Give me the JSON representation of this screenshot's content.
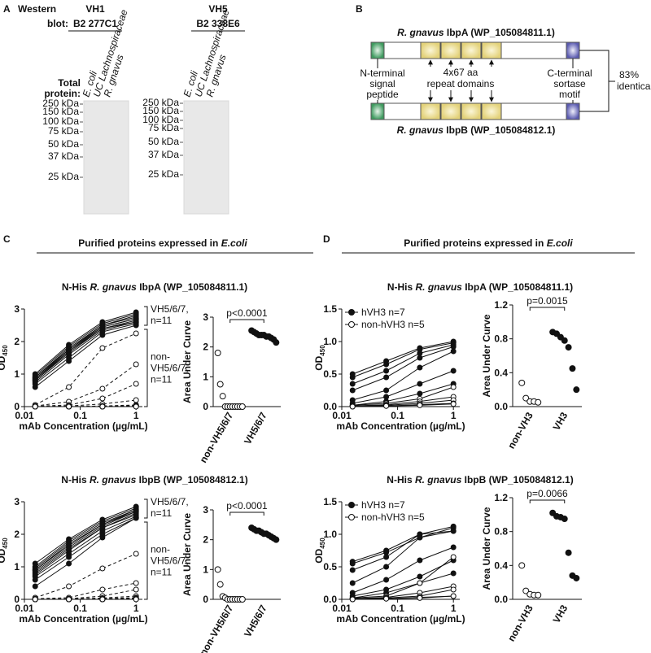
{
  "panel_a": {
    "letter": "A",
    "western": "Western",
    "blot": "blot:",
    "blots": [
      {
        "heavy": "VH1",
        "clone": "B2 277C1",
        "total": "Total",
        "protein": "protein:",
        "lanes": [
          "E. coli",
          "UC Lachnospiraceae",
          "R. gnavus"
        ],
        "markers": [
          "250 kDa",
          "150 kDa",
          "100 kDa",
          "75 kDa",
          "50 kDa",
          "37 kDa",
          "25 kDa"
        ]
      },
      {
        "heavy": "VH5",
        "clone": "B2 338E6",
        "lanes": [
          "E. coli",
          "UC Lachnospiraceae",
          "R. gnavus"
        ],
        "markers": [
          "250 kDa",
          "150 kDa",
          "100 kDa",
          "75 kDa",
          "50 kDa",
          "37 kDa",
          "25 kDa"
        ]
      }
    ]
  },
  "panel_b": {
    "letter": "B",
    "proteins": [
      [
        "R. gnavus",
        " IbpA (WP_105084811.1)"
      ],
      [
        "R. gnavus",
        " IbpB (WP_105084812.1)"
      ]
    ],
    "n_term": [
      "N-terminal",
      "signal",
      "peptide"
    ],
    "repeats": [
      "4x67 aa",
      "repeat domains"
    ],
    "c_term": [
      "C-terminal",
      "sortase",
      "motif"
    ],
    "identity": [
      "83%",
      "identical"
    ]
  },
  "panel_c": {
    "letter": "C",
    "header": [
      "Purified proteins expressed in ",
      "E.coli"
    ],
    "titles": [
      [
        "N-His ",
        "R. gnavus",
        " IbpA (WP_105084811.1)"
      ],
      [
        "N-His ",
        "R. gnavus",
        " IbpB (WP_105084812.1)"
      ]
    ]
  },
  "panel_d": {
    "letter": "D",
    "header": [
      "Purified proteins expressed in ",
      "E.coli"
    ],
    "titles": [
      [
        "N-His ",
        "R. gnavus",
        " IbpA (WP_105084811.1)"
      ],
      [
        "N-His ",
        "R. gnavus",
        " IbpB (WP_105084812.1)"
      ]
    ]
  },
  "chart_data": [
    {
      "type": "line",
      "ylabel": "OD",
      "ylabel_sub": "450",
      "xlabel": "mAb Concentration (µg/mL)",
      "log_x": true,
      "x": [
        0.0156,
        0.0625,
        0.25,
        1
      ],
      "xlim": [
        0.01,
        1.3
      ],
      "xticks": [
        0.01,
        0.1,
        1
      ],
      "ylim": [
        0,
        3
      ],
      "yticks": [
        0,
        1,
        2,
        3
      ],
      "annotations": [
        [
          "VH5/6/7,",
          "n=11"
        ],
        [
          "non-",
          "VH5/6/7,",
          "n=11"
        ]
      ],
      "series": [
        {
          "marker": "filled",
          "values": [
            1.0,
            1.9,
            2.6,
            2.9
          ]
        },
        {
          "marker": "filled",
          "values": [
            0.95,
            1.85,
            2.55,
            2.85
          ]
        },
        {
          "marker": "filled",
          "values": [
            0.9,
            1.8,
            2.5,
            2.8
          ]
        },
        {
          "marker": "filled",
          "values": [
            0.9,
            1.75,
            2.5,
            2.75
          ]
        },
        {
          "marker": "filled",
          "values": [
            0.85,
            1.75,
            2.45,
            2.7
          ]
        },
        {
          "marker": "filled",
          "values": [
            0.85,
            1.7,
            2.45,
            2.7
          ]
        },
        {
          "marker": "filled",
          "values": [
            0.8,
            1.7,
            2.4,
            2.65
          ]
        },
        {
          "marker": "filled",
          "values": [
            0.8,
            1.65,
            2.4,
            2.6
          ]
        },
        {
          "marker": "filled",
          "values": [
            0.75,
            1.6,
            2.35,
            2.6
          ]
        },
        {
          "marker": "filled",
          "values": [
            0.7,
            1.5,
            2.3,
            2.55
          ]
        },
        {
          "marker": "filled",
          "values": [
            0.6,
            1.4,
            2.2,
            2.5
          ]
        },
        {
          "marker": "open",
          "dashed": true,
          "values": [
            0.05,
            0.6,
            1.8,
            2.25
          ]
        },
        {
          "marker": "open",
          "dashed": true,
          "values": [
            0.02,
            0.15,
            0.55,
            1.3
          ]
        },
        {
          "marker": "open",
          "dashed": true,
          "values": [
            0.01,
            0.05,
            0.25,
            0.7
          ]
        },
        {
          "marker": "open",
          "dashed": true,
          "values": [
            0,
            0.02,
            0.08,
            0.2
          ]
        },
        {
          "marker": "open",
          "dashed": true,
          "values": [
            0,
            0,
            0.02,
            0.05
          ]
        },
        {
          "marker": "open",
          "dashed": true,
          "values": [
            0,
            0,
            0.01,
            0.03
          ]
        },
        {
          "marker": "open",
          "dashed": true,
          "values": [
            0,
            0,
            0,
            0.02
          ]
        },
        {
          "marker": "open",
          "dashed": true,
          "values": [
            0,
            0,
            0,
            0.02
          ]
        },
        {
          "marker": "open",
          "dashed": true,
          "values": [
            0,
            0,
            0,
            0.01
          ]
        },
        {
          "marker": "open",
          "dashed": true,
          "values": [
            0,
            0,
            0,
            0.01
          ]
        },
        {
          "marker": "open",
          "dashed": true,
          "values": [
            0,
            0,
            0,
            0
          ]
        }
      ]
    },
    {
      "type": "dot",
      "ylabel": "Area Under Curve",
      "categories": [
        "non-VH5/6/7",
        "VH5/6/7"
      ],
      "ylim": [
        0,
        3
      ],
      "yticks": [
        0,
        1,
        2,
        3
      ],
      "pvalue": "p<0.0001",
      "groups": [
        {
          "marker": "open",
          "values": [
            1.8,
            0.75,
            0.35,
            0,
            0,
            0,
            0,
            0,
            0,
            0,
            0
          ]
        },
        {
          "marker": "filled",
          "values": [
            2.55,
            2.5,
            2.45,
            2.4,
            2.4,
            2.4,
            2.35,
            2.35,
            2.3,
            2.25,
            2.15
          ]
        }
      ]
    },
    {
      "type": "line",
      "ylabel": "OD",
      "ylabel_sub": "450",
      "xlabel": "mAb Concentration (µg/mL)",
      "log_x": true,
      "x": [
        0.0156,
        0.0625,
        0.25,
        1
      ],
      "xlim": [
        0.01,
        1.3
      ],
      "xticks": [
        0.01,
        0.1,
        1
      ],
      "ylim": [
        0,
        3
      ],
      "yticks": [
        0,
        1,
        2,
        3
      ],
      "annotations": [
        [
          "VH5/6/7,",
          "n=11"
        ],
        [
          "non-",
          "VH5/6/7,",
          "n=11"
        ]
      ],
      "series": [
        {
          "marker": "filled",
          "values": [
            1.1,
            1.85,
            2.45,
            2.85
          ]
        },
        {
          "marker": "filled",
          "values": [
            1.0,
            1.8,
            2.4,
            2.8
          ]
        },
        {
          "marker": "filled",
          "values": [
            0.95,
            1.75,
            2.35,
            2.75
          ]
        },
        {
          "marker": "filled",
          "values": [
            0.9,
            1.7,
            2.3,
            2.75
          ]
        },
        {
          "marker": "filled",
          "values": [
            0.9,
            1.65,
            2.3,
            2.7
          ]
        },
        {
          "marker": "filled",
          "values": [
            0.85,
            1.6,
            2.25,
            2.7
          ]
        },
        {
          "marker": "filled",
          "values": [
            0.8,
            1.55,
            2.2,
            2.65
          ]
        },
        {
          "marker": "filled",
          "values": [
            0.75,
            1.5,
            2.2,
            2.6
          ]
        },
        {
          "marker": "filled",
          "values": [
            0.7,
            1.4,
            2.1,
            2.55
          ]
        },
        {
          "marker": "filled",
          "values": [
            0.6,
            1.3,
            2.0,
            2.5
          ]
        },
        {
          "marker": "filled",
          "values": [
            0.4,
            1.1,
            1.9,
            2.5
          ]
        },
        {
          "marker": "open",
          "dashed": true,
          "values": [
            0.05,
            0.4,
            0.95,
            1.4
          ]
        },
        {
          "marker": "open",
          "dashed": true,
          "values": [
            0.02,
            0.05,
            0.3,
            0.5
          ]
        },
        {
          "marker": "open",
          "dashed": true,
          "values": [
            0,
            0.02,
            0.1,
            0.3
          ]
        },
        {
          "marker": "open",
          "dashed": true,
          "values": [
            0,
            0.01,
            0.04,
            0.1
          ]
        },
        {
          "marker": "open",
          "dashed": true,
          "values": [
            0,
            0,
            0.02,
            0.05
          ]
        },
        {
          "marker": "open",
          "dashed": true,
          "values": [
            0,
            0,
            0.01,
            0.03
          ]
        },
        {
          "marker": "open",
          "dashed": true,
          "values": [
            0,
            0,
            0,
            0.02
          ]
        },
        {
          "marker": "open",
          "dashed": true,
          "values": [
            0,
            0,
            0,
            0.02
          ]
        },
        {
          "marker": "open",
          "dashed": true,
          "values": [
            0,
            0,
            0,
            0.01
          ]
        },
        {
          "marker": "open",
          "dashed": true,
          "values": [
            0,
            0,
            0,
            0.01
          ]
        },
        {
          "marker": "open",
          "dashed": true,
          "values": [
            0,
            0,
            0,
            0
          ]
        }
      ]
    },
    {
      "type": "dot",
      "ylabel": "Area Under Curve",
      "categories": [
        "non-VH5/6/7",
        "VH5/6/7"
      ],
      "ylim": [
        0,
        3
      ],
      "yticks": [
        0,
        1,
        2,
        3
      ],
      "pvalue": "p<0.0001",
      "groups": [
        {
          "marker": "open",
          "values": [
            1.0,
            0.5,
            0.1,
            0.05,
            0,
            0,
            0,
            0,
            0,
            0,
            0
          ]
        },
        {
          "marker": "filled",
          "values": [
            2.4,
            2.35,
            2.3,
            2.3,
            2.25,
            2.2,
            2.2,
            2.15,
            2.1,
            2.05,
            2.0
          ]
        }
      ]
    },
    {
      "type": "line",
      "ylabel": "OD",
      "ylabel_sub": "450",
      "xlabel": "mAb Concentration (µg/mL)",
      "log_x": true,
      "x": [
        0.0156,
        0.0625,
        0.25,
        1
      ],
      "xlim": [
        0.01,
        1.3
      ],
      "xticks": [
        0.01,
        0.1,
        1
      ],
      "ylim": [
        0,
        1.5
      ],
      "yticks": [
        {
          "value": 0,
          "label": "0.0"
        },
        0.5,
        {
          "value": 1,
          "label": "1.0"
        },
        1.5
      ],
      "legend": [
        {
          "name": "hVH3 n=7",
          "marker": "filled"
        },
        {
          "name": "non-hVH3 n=5",
          "marker": "open"
        }
      ],
      "series": [
        {
          "marker": "filled",
          "values": [
            0.5,
            0.7,
            0.9,
            1.0
          ]
        },
        {
          "marker": "filled",
          "values": [
            0.45,
            0.65,
            0.88,
            0.98
          ]
        },
        {
          "marker": "filled",
          "values": [
            0.35,
            0.55,
            0.82,
            0.95
          ]
        },
        {
          "marker": "filled",
          "values": [
            0.25,
            0.45,
            0.75,
            0.92
          ]
        },
        {
          "marker": "filled",
          "values": [
            0.1,
            0.25,
            0.6,
            0.85
          ]
        },
        {
          "marker": "filled",
          "values": [
            0.05,
            0.15,
            0.35,
            0.55
          ]
        },
        {
          "marker": "filled",
          "values": [
            0.02,
            0.08,
            0.2,
            0.35
          ]
        },
        {
          "marker": "open",
          "values": [
            0.02,
            0.05,
            0.12,
            0.3
          ]
        },
        {
          "marker": "open",
          "values": [
            0.01,
            0.03,
            0.08,
            0.15
          ]
        },
        {
          "marker": "open",
          "values": [
            0.01,
            0.02,
            0.05,
            0.1
          ]
        },
        {
          "marker": "open",
          "values": [
            0,
            0.01,
            0.03,
            0.05
          ]
        },
        {
          "marker": "open",
          "values": [
            0,
            0.01,
            0.02,
            0.04
          ]
        }
      ]
    },
    {
      "type": "dot",
      "ylabel": "Area Under Curve",
      "categories": [
        "non-VH3",
        "VH3"
      ],
      "ylim": [
        0,
        1.2
      ],
      "yticks": [
        {
          "value": 0,
          "label": "0.0"
        },
        0.4,
        0.8,
        1.2
      ],
      "pvalue": "p=0.0015",
      "groups": [
        {
          "marker": "open",
          "values": [
            0.28,
            0.1,
            0.06,
            0.06,
            0.05
          ]
        },
        {
          "marker": "filled",
          "values": [
            0.88,
            0.86,
            0.82,
            0.78,
            0.7,
            0.45,
            0.2
          ]
        }
      ]
    },
    {
      "type": "line",
      "ylabel": "OD",
      "ylabel_sub": "450",
      "xlabel": "mAb Concentration (µg/mL)",
      "log_x": true,
      "x": [
        0.0156,
        0.0625,
        0.25,
        1
      ],
      "xlim": [
        0.01,
        1.3
      ],
      "xticks": [
        0.01,
        0.1,
        1
      ],
      "ylim": [
        0,
        1.5
      ],
      "yticks": [
        {
          "value": 0,
          "label": "0.0"
        },
        0.5,
        {
          "value": 1,
          "label": "1.0"
        },
        1.5
      ],
      "legend": [
        {
          "name": "hVH3 n=7",
          "marker": "filled"
        },
        {
          "name": "non-hVH3 n=5",
          "marker": "open"
        }
      ],
      "series": [
        {
          "marker": "filled",
          "values": [
            0.58,
            0.75,
            1.0,
            1.12
          ]
        },
        {
          "marker": "filled",
          "values": [
            0.55,
            0.72,
            0.95,
            1.1
          ]
        },
        {
          "marker": "filled",
          "values": [
            0.45,
            0.65,
            1.0,
            1.05
          ]
        },
        {
          "marker": "filled",
          "values": [
            0.25,
            0.5,
            0.95,
            1.05
          ]
        },
        {
          "marker": "filled",
          "values": [
            0.1,
            0.3,
            0.6,
            0.8
          ]
        },
        {
          "marker": "filled",
          "values": [
            0.05,
            0.15,
            0.35,
            0.6
          ]
        },
        {
          "marker": "filled",
          "values": [
            0.02,
            0.1,
            0.25,
            0.4
          ]
        },
        {
          "marker": "open",
          "values": [
            0.02,
            0.05,
            0.25,
            0.65
          ]
        },
        {
          "marker": "open",
          "values": [
            0.01,
            0.03,
            0.1,
            0.2
          ]
        },
        {
          "marker": "open",
          "values": [
            0.01,
            0.02,
            0.05,
            0.15
          ]
        },
        {
          "marker": "open",
          "values": [
            0,
            0.01,
            0.03,
            0.05
          ]
        },
        {
          "marker": "open",
          "values": [
            0,
            0.01,
            0.02,
            0.05
          ]
        }
      ]
    },
    {
      "type": "dot",
      "ylabel": "Area Under Curve",
      "categories": [
        "non-VH3",
        "VH3"
      ],
      "ylim": [
        0,
        1.2
      ],
      "yticks": [
        {
          "value": 0,
          "label": "0.0"
        },
        0.4,
        0.8,
        1.2
      ],
      "pvalue": "p=0.0066",
      "groups": [
        {
          "marker": "open",
          "values": [
            0.4,
            0.1,
            0.06,
            0.05,
            0.05
          ]
        },
        {
          "marker": "filled",
          "values": [
            1.02,
            0.98,
            0.97,
            0.95,
            0.55,
            0.28,
            0.25
          ]
        }
      ]
    }
  ]
}
